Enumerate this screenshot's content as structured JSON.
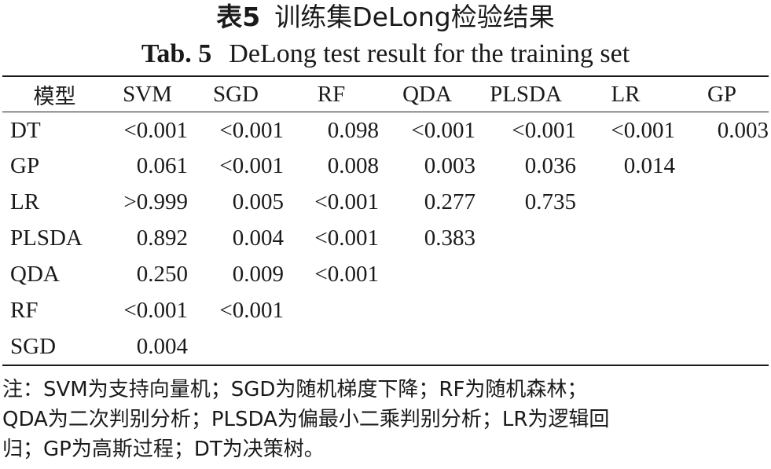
{
  "title_cn": {
    "label": "表5",
    "text": "训练集DeLong检验结果"
  },
  "title_en": {
    "label": "Tab. 5",
    "text": "DeLong test result for the training set"
  },
  "table": {
    "columns": [
      "模型",
      "SVM",
      "SGD",
      "RF",
      "QDA",
      "PLSDA",
      "LR",
      "GP"
    ],
    "rows": [
      {
        "model": "DT",
        "values": [
          "<0.001",
          "<0.001",
          "0.098",
          "<0.001",
          "<0.001",
          "<0.001",
          "0.003"
        ]
      },
      {
        "model": "GP",
        "values": [
          "0.061",
          "<0.001",
          "0.008",
          "0.003",
          "0.036",
          "0.014",
          ""
        ]
      },
      {
        "model": "LR",
        "values": [
          ">0.999",
          "0.005",
          "<0.001",
          "0.277",
          "0.735",
          "",
          ""
        ]
      },
      {
        "model": "PLSDA",
        "values": [
          "0.892",
          "0.004",
          "<0.001",
          "0.383",
          "",
          "",
          ""
        ]
      },
      {
        "model": "QDA",
        "values": [
          "0.250",
          "0.009",
          "<0.001",
          "",
          "",
          "",
          ""
        ]
      },
      {
        "model": "RF",
        "values": [
          "<0.001",
          "<0.001",
          "",
          "",
          "",
          "",
          ""
        ]
      },
      {
        "model": "SGD",
        "values": [
          "0.004",
          "",
          "",
          "",
          "",
          "",
          ""
        ]
      }
    ]
  },
  "note": {
    "lines": [
      "注：SVM为支持向量机；SGD为随机梯度下降；RF为随机森林；",
      "QDA为二次判别分析；PLSDA为偏最小二乘判别分析；LR为逻辑回",
      "归；GP为高斯过程；DT为决策树。"
    ]
  }
}
